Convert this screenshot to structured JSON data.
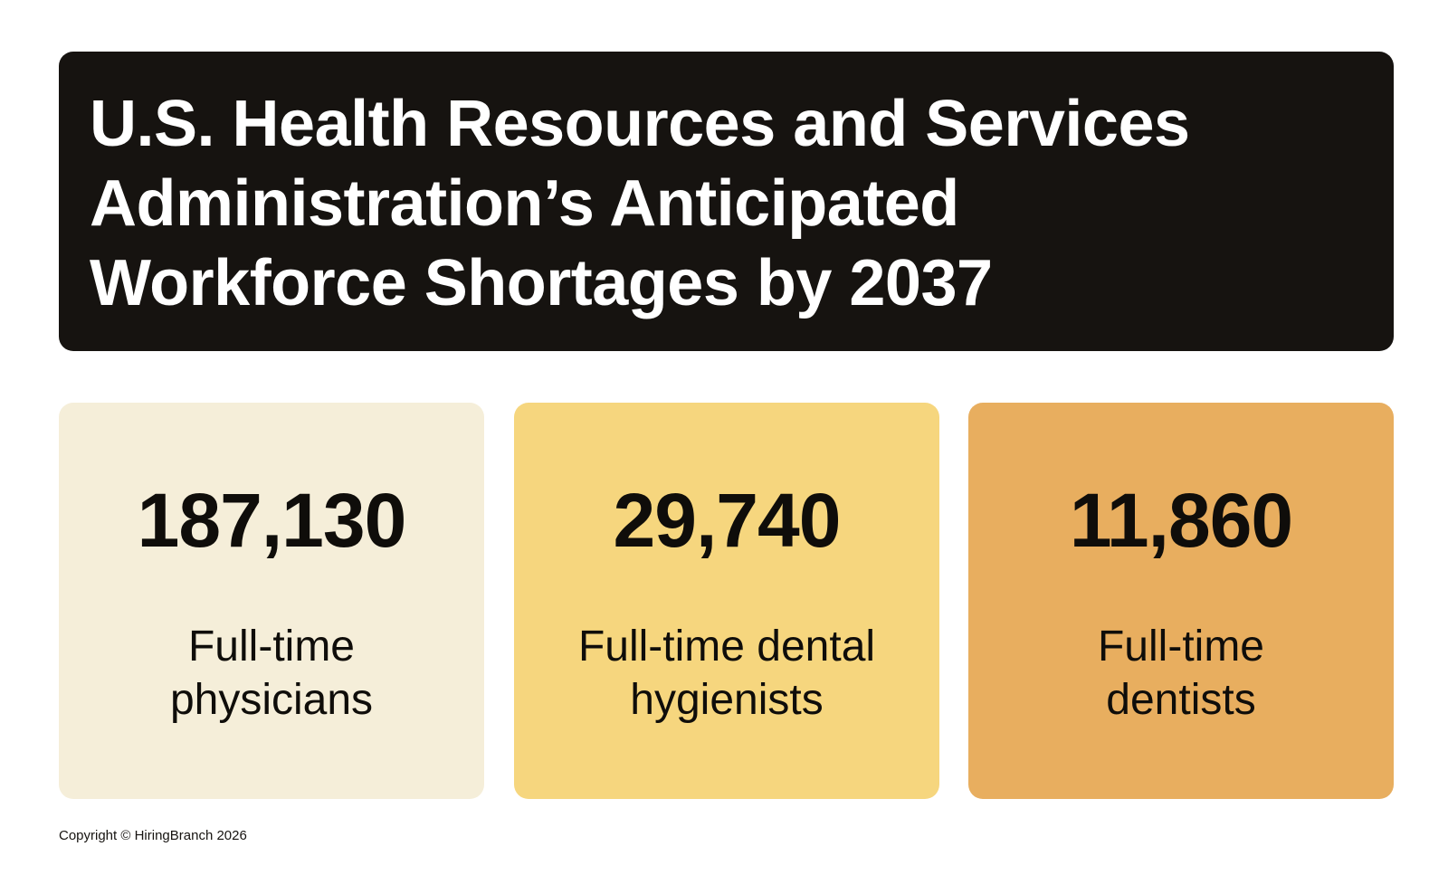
{
  "title": {
    "lines": [
      "U.S. Health Resources and Services",
      "Administration’s Anticipated",
      "Workforce Shortages by 2037"
    ]
  },
  "stats": [
    {
      "value": "187,130",
      "label_lines": [
        "Full-time",
        "physicians"
      ],
      "color": "#f5eed9"
    },
    {
      "value": "29,740",
      "label_lines": [
        "Full-time dental",
        "hygienists"
      ],
      "color": "#f6d67e"
    },
    {
      "value": "11,860",
      "label_lines": [
        "Full-time",
        "dentists"
      ],
      "color": "#e8ae5f"
    }
  ],
  "footer": {
    "copyright": "Copyright © HiringBranch 2026"
  },
  "colors": {
    "title_panel": "#161310",
    "title_text": "#ffffff",
    "text": "#0f0d0a"
  }
}
